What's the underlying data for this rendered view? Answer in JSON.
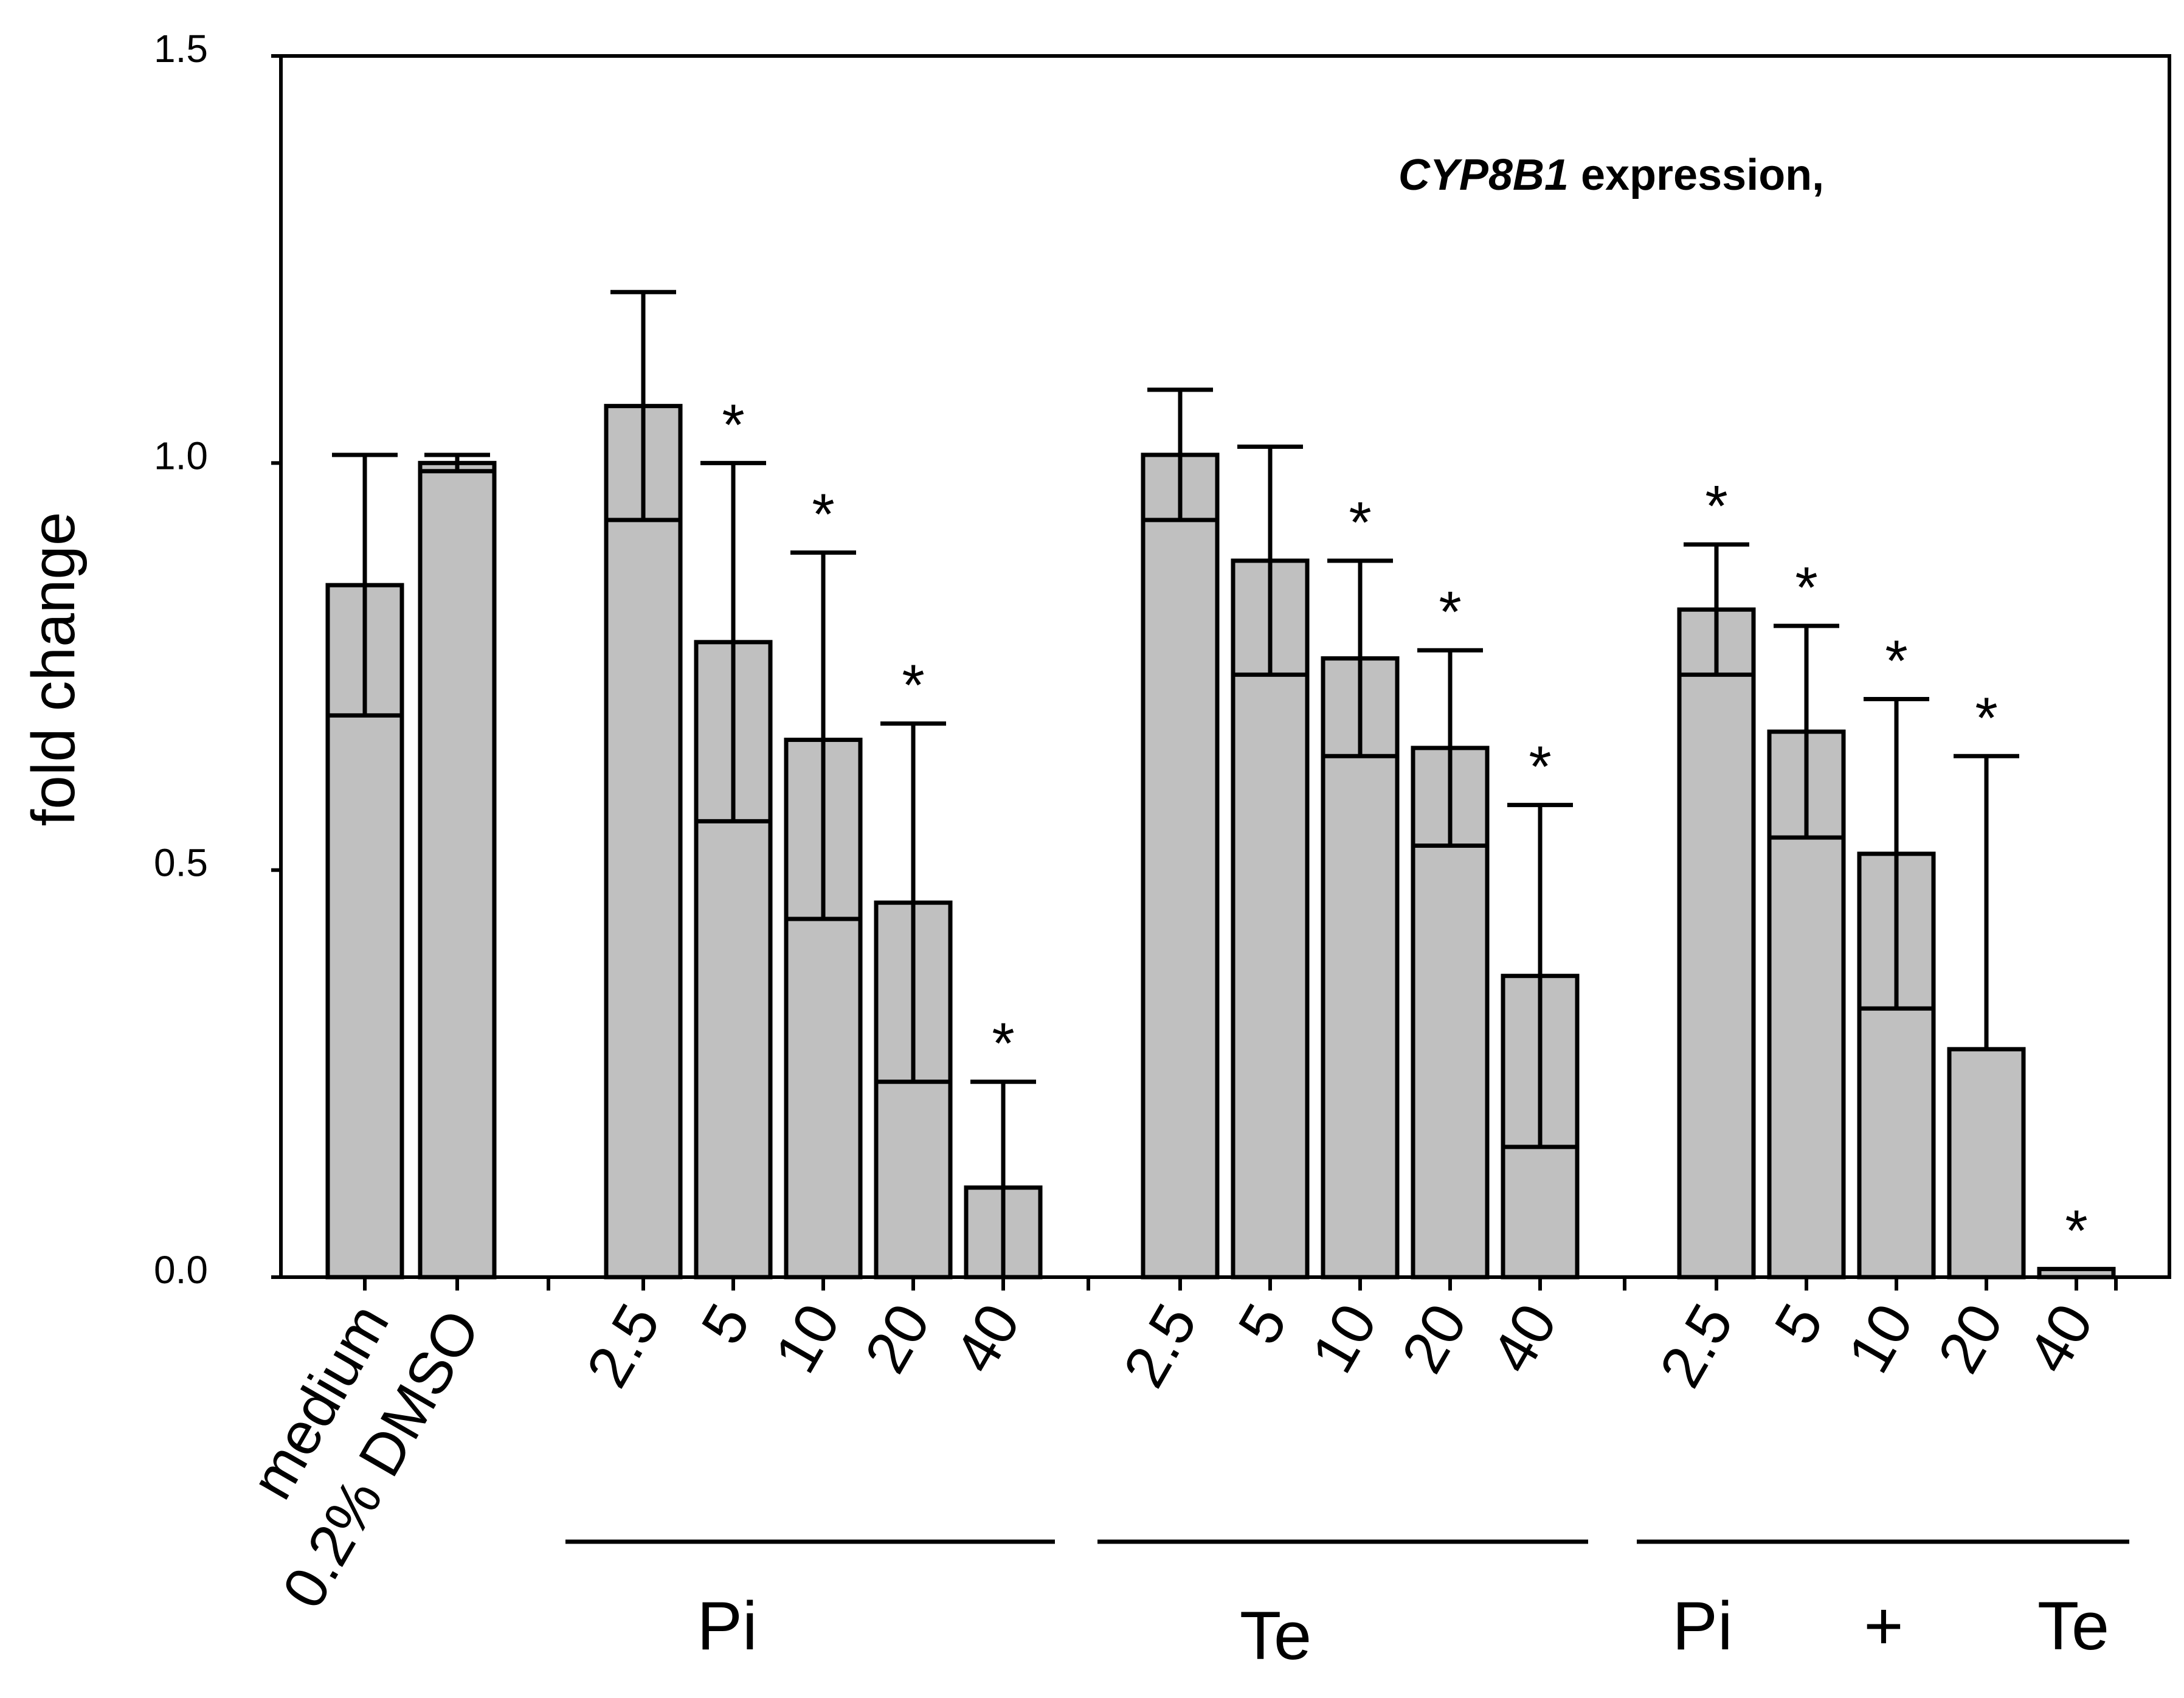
{
  "chart_data": {
    "type": "bar",
    "title_gene": "CYP8B1",
    "title_rest": " expression,",
    "ylabel": "fold change",
    "ylim": [
      0,
      1.5
    ],
    "yticks": [
      "0.0",
      "0.5",
      "1.0",
      "1.5"
    ],
    "bar_color": "#c0c0c0",
    "controls": [
      {
        "label": "medium",
        "value": 0.85,
        "err_up": 0.16,
        "err_down": 0.16,
        "significant": false
      },
      {
        "label": "0.2% DMSO",
        "value": 1.0,
        "err_up": 0.01,
        "err_down": 0.01,
        "significant": false
      }
    ],
    "groups": [
      {
        "name": "Pi",
        "labels": [
          "2.5",
          "5",
          "10",
          "20",
          "40"
        ],
        "values": [
          1.07,
          0.78,
          0.66,
          0.46,
          0.11
        ],
        "err_up": [
          0.14,
          0.22,
          0.23,
          0.22,
          0.13
        ],
        "err_down": [
          0.14,
          0.22,
          0.22,
          0.22,
          0.11
        ],
        "significant": [
          false,
          true,
          true,
          true,
          true
        ]
      },
      {
        "name": "Te",
        "labels": [
          "2.5",
          "5",
          "10",
          "20",
          "40"
        ],
        "values": [
          1.01,
          0.88,
          0.76,
          0.65,
          0.37
        ],
        "err_up": [
          0.08,
          0.14,
          0.12,
          0.12,
          0.21
        ],
        "err_down": [
          0.08,
          0.14,
          0.12,
          0.12,
          0.21
        ],
        "significant": [
          false,
          false,
          true,
          true,
          true
        ]
      },
      {
        "name_parts": [
          "Pi",
          "+",
          "Te"
        ],
        "labels": [
          "2.5",
          "5",
          "10",
          "20",
          "40"
        ],
        "values": [
          0.82,
          0.67,
          0.52,
          0.28,
          0.01
        ],
        "err_up": [
          0.08,
          0.13,
          0.19,
          0.36,
          0.0
        ],
        "err_down": [
          0.08,
          0.13,
          0.19,
          0.0,
          0.0
        ],
        "significant": [
          true,
          true,
          true,
          true,
          true
        ]
      }
    ]
  }
}
